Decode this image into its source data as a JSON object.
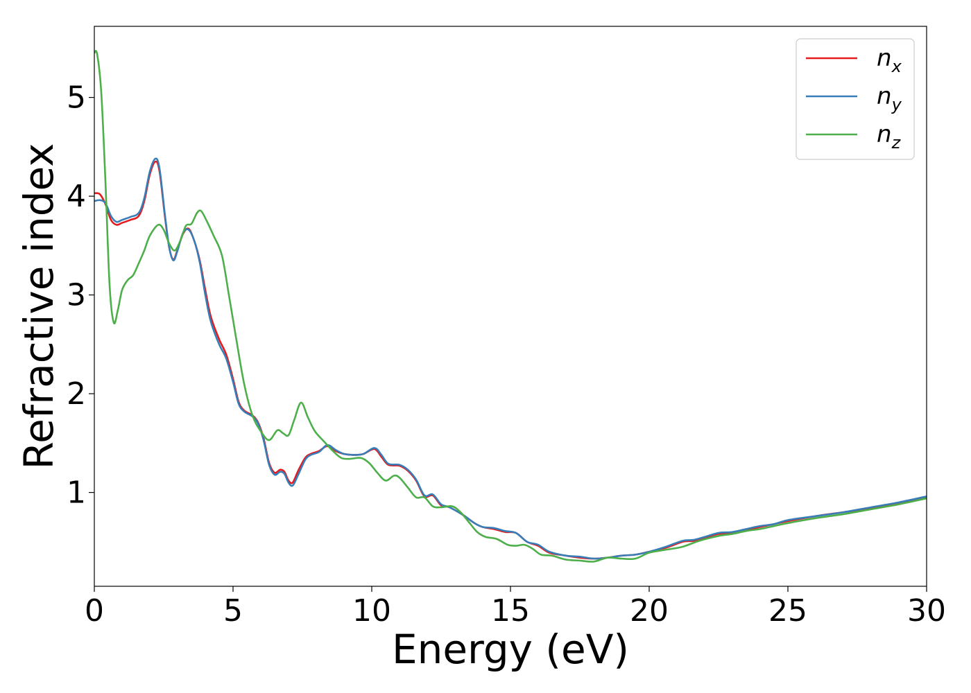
{
  "chart_data": {
    "type": "line",
    "title": "",
    "xlabel": "Energy (eV)",
    "ylabel": "Refractive index",
    "xlim": [
      0,
      30
    ],
    "ylim": [
      0.05,
      5.72
    ],
    "xticks": [
      0,
      5,
      10,
      15,
      20,
      25,
      30
    ],
    "yticks": [
      1,
      2,
      3,
      4,
      5
    ],
    "grid": false,
    "legend_position": "top-right",
    "series": [
      {
        "name": "n",
        "subscript": "x",
        "color": "#e41a1c",
        "points": [
          [
            0,
            4.03
          ],
          [
            0.2,
            4.02
          ],
          [
            0.4,
            3.92
          ],
          [
            0.6,
            3.76
          ],
          [
            0.8,
            3.71
          ],
          [
            1.0,
            3.73
          ],
          [
            1.3,
            3.76
          ],
          [
            1.6,
            3.8
          ],
          [
            1.8,
            3.95
          ],
          [
            2.0,
            4.22
          ],
          [
            2.2,
            4.35
          ],
          [
            2.35,
            4.25
          ],
          [
            2.55,
            3.78
          ],
          [
            2.7,
            3.48
          ],
          [
            2.85,
            3.36
          ],
          [
            3.0,
            3.46
          ],
          [
            3.2,
            3.62
          ],
          [
            3.4,
            3.67
          ],
          [
            3.6,
            3.55
          ],
          [
            3.8,
            3.35
          ],
          [
            4.0,
            3.05
          ],
          [
            4.2,
            2.78
          ],
          [
            4.5,
            2.55
          ],
          [
            4.75,
            2.4
          ],
          [
            5.0,
            2.15
          ],
          [
            5.2,
            1.92
          ],
          [
            5.4,
            1.83
          ],
          [
            5.7,
            1.78
          ],
          [
            5.9,
            1.71
          ],
          [
            6.1,
            1.55
          ],
          [
            6.3,
            1.3
          ],
          [
            6.5,
            1.2
          ],
          [
            6.7,
            1.23
          ],
          [
            6.85,
            1.21
          ],
          [
            7.0,
            1.12
          ],
          [
            7.15,
            1.1
          ],
          [
            7.35,
            1.22
          ],
          [
            7.6,
            1.35
          ],
          [
            7.8,
            1.39
          ],
          [
            8.1,
            1.42
          ],
          [
            8.4,
            1.47
          ],
          [
            8.7,
            1.42
          ],
          [
            9.0,
            1.39
          ],
          [
            9.4,
            1.38
          ],
          [
            9.7,
            1.39
          ],
          [
            10.1,
            1.44
          ],
          [
            10.35,
            1.36
          ],
          [
            10.6,
            1.28
          ],
          [
            11.0,
            1.27
          ],
          [
            11.3,
            1.22
          ],
          [
            11.6,
            1.12
          ],
          [
            11.9,
            0.96
          ],
          [
            12.2,
            0.97
          ],
          [
            12.5,
            0.87
          ],
          [
            12.8,
            0.85
          ],
          [
            13.3,
            0.77
          ],
          [
            13.7,
            0.69
          ],
          [
            14.0,
            0.65
          ],
          [
            14.4,
            0.63
          ],
          [
            14.8,
            0.6
          ],
          [
            15.2,
            0.59
          ],
          [
            15.6,
            0.5
          ],
          [
            16.0,
            0.46
          ],
          [
            16.4,
            0.39
          ],
          [
            17.0,
            0.36
          ],
          [
            17.5,
            0.34
          ],
          [
            18.0,
            0.33
          ],
          [
            18.5,
            0.34
          ],
          [
            19.0,
            0.36
          ],
          [
            19.5,
            0.37
          ],
          [
            20.0,
            0.4
          ],
          [
            20.6,
            0.44
          ],
          [
            21.2,
            0.5
          ],
          [
            21.6,
            0.51
          ],
          [
            22.0,
            0.54
          ],
          [
            22.5,
            0.58
          ],
          [
            23.0,
            0.59
          ],
          [
            23.5,
            0.62
          ],
          [
            24.0,
            0.65
          ],
          [
            24.5,
            0.68
          ],
          [
            25.0,
            0.71
          ],
          [
            26.0,
            0.76
          ],
          [
            27.0,
            0.8
          ],
          [
            28.0,
            0.84
          ],
          [
            29.0,
            0.89
          ],
          [
            30.0,
            0.95
          ]
        ]
      },
      {
        "name": "n",
        "subscript": "y",
        "color": "#377eb8",
        "points": [
          [
            0,
            3.95
          ],
          [
            0.2,
            3.96
          ],
          [
            0.4,
            3.93
          ],
          [
            0.6,
            3.8
          ],
          [
            0.8,
            3.74
          ],
          [
            1.0,
            3.76
          ],
          [
            1.3,
            3.79
          ],
          [
            1.6,
            3.83
          ],
          [
            1.8,
            3.98
          ],
          [
            2.0,
            4.25
          ],
          [
            2.2,
            4.38
          ],
          [
            2.35,
            4.28
          ],
          [
            2.55,
            3.8
          ],
          [
            2.7,
            3.48
          ],
          [
            2.85,
            3.35
          ],
          [
            3.0,
            3.45
          ],
          [
            3.2,
            3.63
          ],
          [
            3.4,
            3.66
          ],
          [
            3.6,
            3.55
          ],
          [
            3.8,
            3.33
          ],
          [
            4.0,
            3.0
          ],
          [
            4.2,
            2.73
          ],
          [
            4.5,
            2.5
          ],
          [
            4.75,
            2.36
          ],
          [
            5.0,
            2.12
          ],
          [
            5.2,
            1.9
          ],
          [
            5.4,
            1.82
          ],
          [
            5.7,
            1.77
          ],
          [
            5.9,
            1.7
          ],
          [
            6.1,
            1.53
          ],
          [
            6.3,
            1.28
          ],
          [
            6.5,
            1.18
          ],
          [
            6.7,
            1.21
          ],
          [
            6.85,
            1.19
          ],
          [
            7.0,
            1.1
          ],
          [
            7.15,
            1.07
          ],
          [
            7.35,
            1.18
          ],
          [
            7.6,
            1.33
          ],
          [
            7.8,
            1.38
          ],
          [
            8.1,
            1.41
          ],
          [
            8.4,
            1.48
          ],
          [
            8.7,
            1.43
          ],
          [
            9.0,
            1.39
          ],
          [
            9.4,
            1.38
          ],
          [
            9.7,
            1.39
          ],
          [
            10.1,
            1.45
          ],
          [
            10.35,
            1.38
          ],
          [
            10.6,
            1.29
          ],
          [
            11.0,
            1.28
          ],
          [
            11.3,
            1.23
          ],
          [
            11.6,
            1.13
          ],
          [
            11.9,
            0.97
          ],
          [
            12.2,
            0.98
          ],
          [
            12.5,
            0.88
          ],
          [
            12.8,
            0.85
          ],
          [
            13.3,
            0.77
          ],
          [
            13.7,
            0.69
          ],
          [
            14.0,
            0.65
          ],
          [
            14.4,
            0.64
          ],
          [
            14.8,
            0.61
          ],
          [
            15.2,
            0.59
          ],
          [
            15.6,
            0.5
          ],
          [
            16.0,
            0.47
          ],
          [
            16.4,
            0.4
          ],
          [
            17.0,
            0.36
          ],
          [
            17.5,
            0.35
          ],
          [
            18.0,
            0.33
          ],
          [
            18.5,
            0.34
          ],
          [
            19.0,
            0.36
          ],
          [
            19.5,
            0.37
          ],
          [
            20.0,
            0.4
          ],
          [
            20.6,
            0.45
          ],
          [
            21.2,
            0.51
          ],
          [
            21.6,
            0.52
          ],
          [
            22.0,
            0.55
          ],
          [
            22.5,
            0.59
          ],
          [
            23.0,
            0.6
          ],
          [
            23.5,
            0.63
          ],
          [
            24.0,
            0.66
          ],
          [
            24.5,
            0.68
          ],
          [
            25.0,
            0.72
          ],
          [
            26.0,
            0.76
          ],
          [
            27.0,
            0.8
          ],
          [
            28.0,
            0.85
          ],
          [
            29.0,
            0.9
          ],
          [
            30.0,
            0.96
          ]
        ]
      },
      {
        "name": "n",
        "subscript": "z",
        "color": "#4daf4a",
        "points": [
          [
            0,
            5.45
          ],
          [
            0.1,
            5.44
          ],
          [
            0.25,
            5.05
          ],
          [
            0.4,
            4.15
          ],
          [
            0.55,
            3.1
          ],
          [
            0.7,
            2.72
          ],
          [
            0.85,
            2.85
          ],
          [
            1.0,
            3.05
          ],
          [
            1.2,
            3.15
          ],
          [
            1.4,
            3.2
          ],
          [
            1.6,
            3.32
          ],
          [
            1.8,
            3.45
          ],
          [
            2.0,
            3.6
          ],
          [
            2.3,
            3.71
          ],
          [
            2.5,
            3.66
          ],
          [
            2.7,
            3.52
          ],
          [
            2.9,
            3.45
          ],
          [
            3.1,
            3.55
          ],
          [
            3.3,
            3.7
          ],
          [
            3.5,
            3.72
          ],
          [
            3.7,
            3.83
          ],
          [
            3.85,
            3.85
          ],
          [
            4.05,
            3.75
          ],
          [
            4.3,
            3.6
          ],
          [
            4.6,
            3.4
          ],
          [
            4.85,
            3.0
          ],
          [
            5.1,
            2.58
          ],
          [
            5.4,
            2.1
          ],
          [
            5.7,
            1.78
          ],
          [
            6.0,
            1.62
          ],
          [
            6.3,
            1.53
          ],
          [
            6.6,
            1.63
          ],
          [
            6.8,
            1.6
          ],
          [
            7.0,
            1.58
          ],
          [
            7.2,
            1.73
          ],
          [
            7.45,
            1.91
          ],
          [
            7.7,
            1.76
          ],
          [
            7.95,
            1.62
          ],
          [
            8.3,
            1.51
          ],
          [
            8.6,
            1.42
          ],
          [
            8.9,
            1.35
          ],
          [
            9.2,
            1.34
          ],
          [
            9.6,
            1.35
          ],
          [
            9.9,
            1.3
          ],
          [
            10.2,
            1.2
          ],
          [
            10.5,
            1.12
          ],
          [
            10.8,
            1.17
          ],
          [
            11.0,
            1.15
          ],
          [
            11.3,
            1.05
          ],
          [
            11.6,
            0.95
          ],
          [
            11.9,
            0.95
          ],
          [
            12.2,
            0.86
          ],
          [
            12.5,
            0.85
          ],
          [
            12.9,
            0.86
          ],
          [
            13.2,
            0.8
          ],
          [
            13.5,
            0.7
          ],
          [
            13.8,
            0.6
          ],
          [
            14.1,
            0.55
          ],
          [
            14.5,
            0.53
          ],
          [
            14.9,
            0.47
          ],
          [
            15.2,
            0.46
          ],
          [
            15.5,
            0.47
          ],
          [
            15.8,
            0.43
          ],
          [
            16.1,
            0.37
          ],
          [
            16.5,
            0.36
          ],
          [
            17.0,
            0.32
          ],
          [
            17.5,
            0.31
          ],
          [
            18.0,
            0.3
          ],
          [
            18.5,
            0.34
          ],
          [
            19.0,
            0.33
          ],
          [
            19.5,
            0.33
          ],
          [
            20.0,
            0.39
          ],
          [
            20.6,
            0.42
          ],
          [
            21.2,
            0.45
          ],
          [
            21.8,
            0.51
          ],
          [
            22.5,
            0.56
          ],
          [
            23.0,
            0.58
          ],
          [
            23.5,
            0.61
          ],
          [
            24.0,
            0.63
          ],
          [
            24.5,
            0.66
          ],
          [
            25.0,
            0.69
          ],
          [
            26.0,
            0.74
          ],
          [
            27.0,
            0.78
          ],
          [
            28.0,
            0.83
          ],
          [
            29.0,
            0.88
          ],
          [
            30.0,
            0.94
          ]
        ]
      }
    ]
  }
}
